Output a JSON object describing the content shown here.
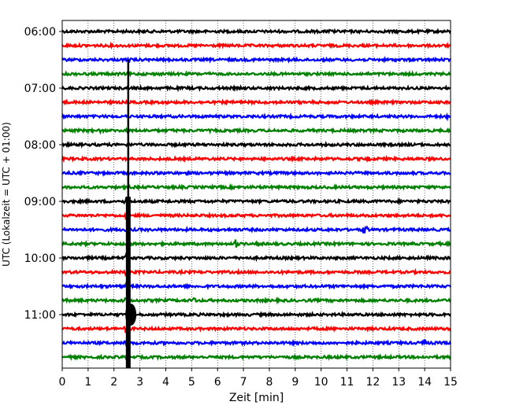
{
  "chart_data": {
    "type": "line",
    "title": "",
    "xlabel": "Zeit  [min]",
    "ylabel": "UTC (Lokalzeit = UTC + 01:00)",
    "xlim": [
      0,
      15
    ],
    "x_ticks": [
      "0",
      "1",
      "2",
      "3",
      "4",
      "5",
      "6",
      "7",
      "8",
      "9",
      "10",
      "11",
      "12",
      "13",
      "14",
      "15"
    ],
    "y_ticks": [
      "06:00",
      "07:00",
      "08:00",
      "09:00",
      "10:00",
      "11:00"
    ],
    "grid": "vertical dotted",
    "trace_interval_minutes": 15,
    "colors_cycle": [
      "#000000",
      "#ff0000",
      "#0000ff",
      "#008000"
    ],
    "traces": [
      {
        "start": "06:00",
        "color": "#000000",
        "events": [
          {
            "t": 10.3,
            "amp": 0.3
          }
        ]
      },
      {
        "start": "06:15",
        "color": "#ff0000",
        "events": []
      },
      {
        "start": "06:30",
        "color": "#0000ff",
        "events": [
          {
            "t": 2.55,
            "amp": 0.5
          }
        ]
      },
      {
        "start": "06:45",
        "color": "#008000",
        "events": []
      },
      {
        "start": "07:00",
        "color": "#000000",
        "events": []
      },
      {
        "start": "07:15",
        "color": "#ff0000",
        "events": []
      },
      {
        "start": "07:30",
        "color": "#0000ff",
        "events": [
          {
            "t": 14.9,
            "amp": 0.3
          }
        ]
      },
      {
        "start": "07:45",
        "color": "#008000",
        "events": [
          {
            "t": 1.5,
            "amp": 0.3
          }
        ]
      },
      {
        "start": "08:00",
        "color": "#000000",
        "events": [
          {
            "t": 14.2,
            "amp": 0.4
          }
        ]
      },
      {
        "start": "08:15",
        "color": "#ff0000",
        "events": [
          {
            "t": 11.8,
            "amp": 0.5
          }
        ]
      },
      {
        "start": "08:30",
        "color": "#0000ff",
        "events": [
          {
            "t": 3.0,
            "amp": 0.3
          },
          {
            "t": 10.7,
            "amp": 0.4
          }
        ]
      },
      {
        "start": "08:45",
        "color": "#008000",
        "events": []
      },
      {
        "start": "09:00",
        "color": "#000000",
        "events": [
          {
            "t": 2.5,
            "amp": 1.6
          }
        ]
      },
      {
        "start": "09:15",
        "color": "#ff0000",
        "events": [
          {
            "t": 2.5,
            "amp": 1.2
          }
        ]
      },
      {
        "start": "09:30",
        "color": "#0000ff",
        "events": [
          {
            "t": 2.5,
            "amp": 1.2
          },
          {
            "t": 11.7,
            "amp": 1.0
          }
        ]
      },
      {
        "start": "09:45",
        "color": "#008000",
        "events": [
          {
            "t": 2.5,
            "amp": 1.2
          },
          {
            "t": 6.7,
            "amp": 1.0
          },
          {
            "t": 7.6,
            "amp": 1.0
          }
        ]
      },
      {
        "start": "10:00",
        "color": "#000000",
        "events": [
          {
            "t": 2.5,
            "amp": 1.2
          }
        ]
      },
      {
        "start": "10:15",
        "color": "#ff0000",
        "events": [
          {
            "t": 2.5,
            "amp": 1.2
          }
        ]
      },
      {
        "start": "10:30",
        "color": "#0000ff",
        "events": [
          {
            "t": 2.5,
            "amp": 1.2
          }
        ]
      },
      {
        "start": "10:45",
        "color": "#008000",
        "events": [
          {
            "t": 2.5,
            "amp": 1.4
          },
          {
            "t": 5.1,
            "amp": 0.6
          }
        ]
      },
      {
        "start": "11:00",
        "color": "#000000",
        "events": [
          {
            "t": 2.6,
            "amp": 2.2
          }
        ]
      },
      {
        "start": "11:15",
        "color": "#ff0000",
        "events": [
          {
            "t": 2.5,
            "amp": 1.2
          }
        ]
      },
      {
        "start": "11:30",
        "color": "#0000ff",
        "events": [
          {
            "t": 2.5,
            "amp": 1.2
          },
          {
            "t": 14.0,
            "amp": 0.6
          }
        ]
      },
      {
        "start": "11:45",
        "color": "#008000",
        "events": [
          {
            "t": 2.5,
            "amp": 1.2
          }
        ]
      }
    ],
    "continuous_spike": {
      "t": 2.55,
      "from": "06:30",
      "to": "12:00"
    }
  }
}
